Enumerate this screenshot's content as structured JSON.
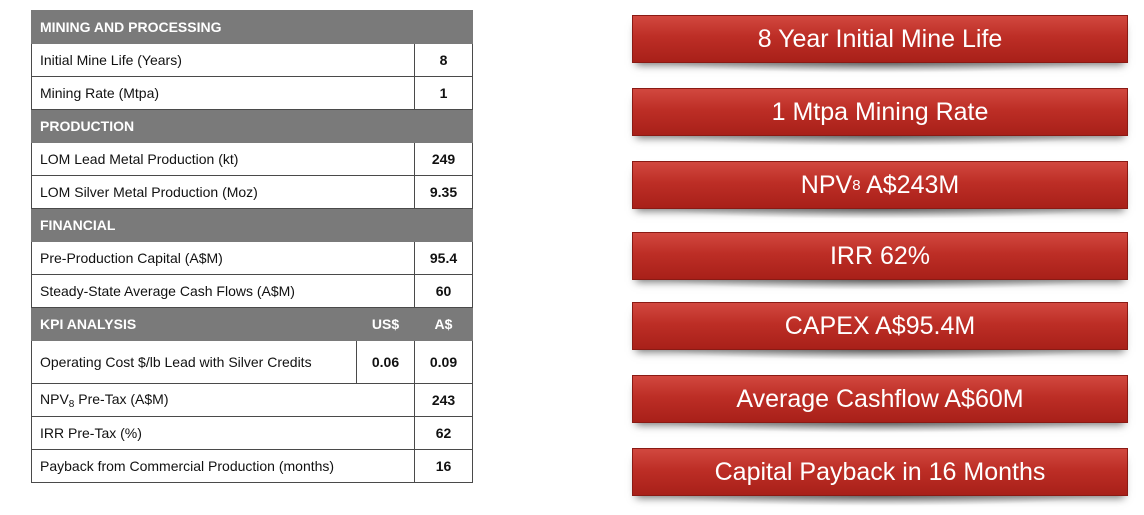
{
  "table": {
    "mining": {
      "header": "MINING AND PROCESSING",
      "rows": [
        {
          "label": "Initial Mine Life (Years)",
          "value": "8"
        },
        {
          "label": "Mining Rate (Mtpa)",
          "value": "1"
        }
      ]
    },
    "production": {
      "header": "PRODUCTION",
      "rows": [
        {
          "label": "LOM Lead Metal Production (kt)",
          "value": "249"
        },
        {
          "label": "LOM Silver Metal Production (Moz)",
          "value": "9.35"
        }
      ]
    },
    "financial": {
      "header": "FINANCIAL",
      "rows": [
        {
          "label": "Pre-Production Capital (A$M)",
          "value": "95.4"
        },
        {
          "label": "Steady-State Average Cash Flows (A$M)",
          "value": "60"
        }
      ]
    },
    "kpi": {
      "header": "KPI ANALYSIS",
      "col_usd": "US$",
      "col_aud": "A$",
      "opcost": {
        "label": "Operating Cost $/lb Lead with Silver Credits",
        "usd": "0.06",
        "aud": "0.09"
      },
      "npv": {
        "prefix": "NPV",
        "subscript": "8",
        "suffix": " Pre-Tax  (A$M)",
        "value": "243"
      },
      "irr": {
        "label": "IRR Pre-Tax (%)",
        "value": "62"
      },
      "payback": {
        "label": "Payback from Commercial Production (months)",
        "value": "16"
      }
    }
  },
  "banners": {
    "mine_life": "8 Year Initial Mine Life",
    "mining_rate": "1 Mtpa Mining Rate",
    "npv": {
      "prefix": "NPV",
      "subscript": "8",
      "suffix": " A$243M"
    },
    "irr": "IRR 62%",
    "capex": "CAPEX A$95.4M",
    "cashflow": "Average Cashflow A$60M",
    "payback": "Capital Payback in 16 Months"
  },
  "colors": {
    "section_header_bg": "#7a7a7a",
    "banner_red": "#bd2e26"
  }
}
